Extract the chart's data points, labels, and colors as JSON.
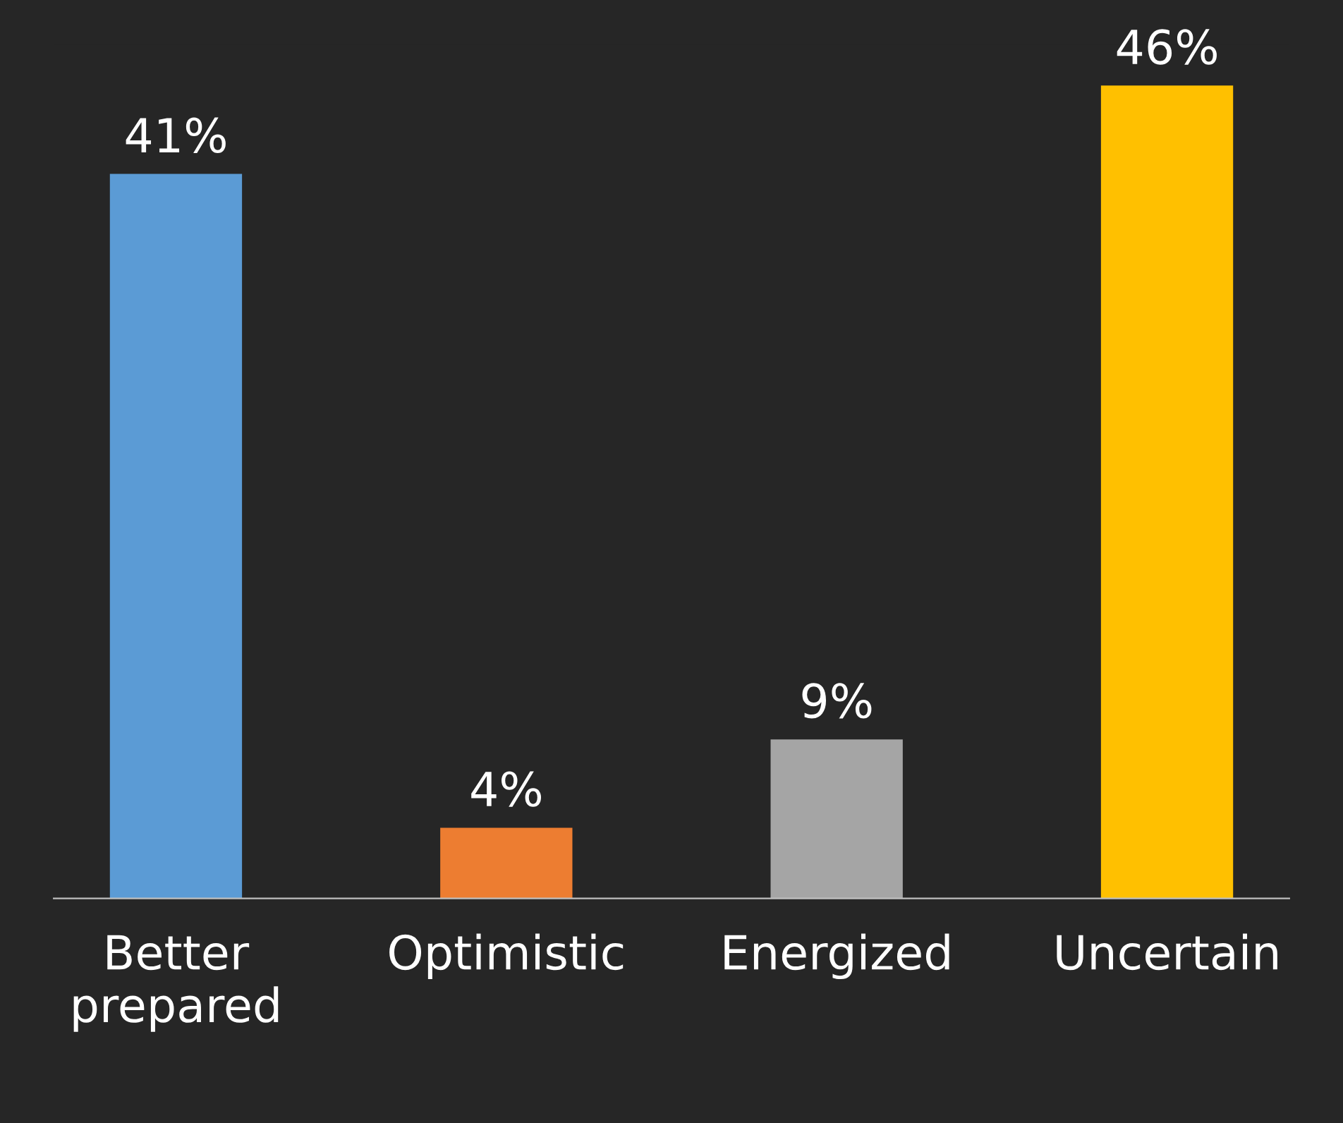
{
  "chart_data": {
    "type": "bar",
    "categories": [
      "Better\nprepared",
      "Optimistic",
      "Energized",
      "Uncertain"
    ],
    "values": [
      41,
      4,
      9,
      46
    ],
    "colors": [
      "#5b9bd5",
      "#ed7d31",
      "#a5a5a5",
      "#ffc000"
    ],
    "value_labels": [
      "41%",
      "4%",
      "9%",
      "46%"
    ],
    "grid": false,
    "legend": false
  }
}
